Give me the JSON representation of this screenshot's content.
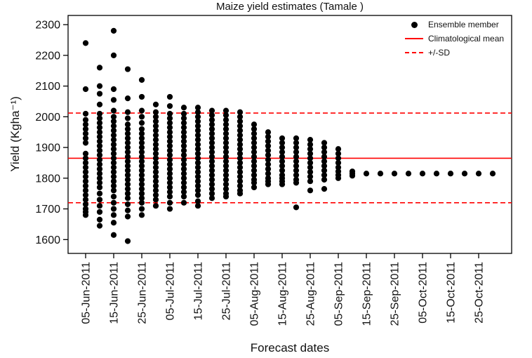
{
  "chart_data": {
    "type": "scatter",
    "title": "Maize yield estimates (Tamale )",
    "xlabel": "Forecast dates",
    "ylabel": "Yield (Kgha⁻¹)",
    "ylim": [
      1555,
      2330
    ],
    "yticks": [
      1600,
      1700,
      1800,
      1900,
      2000,
      2100,
      2200,
      2300
    ],
    "climatological_mean": 1865,
    "sd_upper": 2012,
    "sd_lower": 1720,
    "mean_color": "#ff0000",
    "dot_color": "#000000",
    "legend": [
      {
        "label": "Ensemble member",
        "marker": "dot",
        "color": "#000000"
      },
      {
        "label": "Climatological mean",
        "marker": "line",
        "color": "#ff0000"
      },
      {
        "label": "+/-SD",
        "marker": "dashed-line",
        "color": "#ff0000"
      }
    ],
    "columns": [
      {
        "date": "05-Jun-2011",
        "labeled": true,
        "values": [
          2240,
          2090,
          2010,
          1990,
          1975,
          1960,
          1945,
          1930,
          1915,
          1880,
          1865,
          1850,
          1835,
          1820,
          1805,
          1790,
          1775,
          1760,
          1745,
          1730,
          1715,
          1700,
          1690,
          1680
        ]
      },
      {
        "date": "10-Jun-2011",
        "labeled": false,
        "values": [
          2160,
          2100,
          2075,
          2040,
          2010,
          1995,
          1980,
          1965,
          1950,
          1935,
          1920,
          1905,
          1890,
          1875,
          1860,
          1845,
          1830,
          1815,
          1800,
          1785,
          1770,
          1750,
          1730,
          1710,
          1690,
          1665,
          1645
        ]
      },
      {
        "date": "15-Jun-2011",
        "labeled": true,
        "values": [
          2280,
          2200,
          2090,
          2055,
          2020,
          2000,
          1985,
          1970,
          1955,
          1940,
          1925,
          1910,
          1895,
          1880,
          1865,
          1850,
          1835,
          1820,
          1805,
          1790,
          1775,
          1760,
          1740,
          1720,
          1700,
          1680,
          1655,
          1615
        ]
      },
      {
        "date": "20-Jun-2011",
        "labeled": false,
        "values": [
          2155,
          2060,
          2015,
          1995,
          1975,
          1960,
          1945,
          1930,
          1915,
          1900,
          1885,
          1870,
          1855,
          1840,
          1825,
          1810,
          1795,
          1780,
          1765,
          1750,
          1735,
          1715,
          1695,
          1675,
          1595
        ]
      },
      {
        "date": "25-Jun-2011",
        "labeled": true,
        "values": [
          2120,
          2065,
          2020,
          2000,
          1980,
          1960,
          1945,
          1930,
          1915,
          1900,
          1885,
          1870,
          1855,
          1840,
          1825,
          1810,
          1795,
          1780,
          1765,
          1750,
          1735,
          1720,
          1700,
          1680
        ]
      },
      {
        "date": "30-Jun-2011",
        "labeled": false,
        "values": [
          2040,
          2015,
          2000,
          1985,
          1970,
          1955,
          1940,
          1925,
          1910,
          1895,
          1880,
          1865,
          1850,
          1835,
          1820,
          1805,
          1790,
          1775,
          1760,
          1745,
          1730,
          1710
        ]
      },
      {
        "date": "05-Jul-2011",
        "labeled": true,
        "values": [
          2065,
          2035,
          2010,
          1995,
          1980,
          1965,
          1950,
          1935,
          1920,
          1905,
          1890,
          1875,
          1860,
          1845,
          1830,
          1815,
          1800,
          1785,
          1770,
          1755,
          1740,
          1720,
          1700
        ]
      },
      {
        "date": "10-Jul-2011",
        "labeled": false,
        "values": [
          2030,
          2010,
          1995,
          1980,
          1965,
          1950,
          1935,
          1920,
          1905,
          1890,
          1875,
          1860,
          1845,
          1830,
          1815,
          1800,
          1785,
          1770,
          1755,
          1740,
          1720
        ]
      },
      {
        "date": "15-Jul-2011",
        "labeled": true,
        "values": [
          2030,
          2015,
          2000,
          1985,
          1970,
          1955,
          1940,
          1925,
          1910,
          1895,
          1880,
          1865,
          1850,
          1835,
          1820,
          1805,
          1790,
          1775,
          1760,
          1745,
          1725,
          1710
        ]
      },
      {
        "date": "20-Jul-2011",
        "labeled": false,
        "values": [
          2020,
          2005,
          1990,
          1975,
          1960,
          1945,
          1930,
          1915,
          1900,
          1885,
          1870,
          1855,
          1840,
          1825,
          1810,
          1795,
          1780,
          1765,
          1750,
          1735
        ]
      },
      {
        "date": "25-Jul-2011",
        "labeled": true,
        "values": [
          2020,
          2005,
          1990,
          1975,
          1960,
          1945,
          1930,
          1915,
          1900,
          1885,
          1870,
          1855,
          1840,
          1825,
          1810,
          1795,
          1780,
          1765,
          1750,
          1740
        ]
      },
      {
        "date": "30-Jul-2011",
        "labeled": false,
        "values": [
          2015,
          2000,
          1985,
          1970,
          1955,
          1940,
          1925,
          1910,
          1895,
          1880,
          1865,
          1850,
          1835,
          1820,
          1805,
          1790,
          1775,
          1760,
          1750
        ]
      },
      {
        "date": "05-Aug-2011",
        "labeled": true,
        "values": [
          1975,
          1960,
          1945,
          1930,
          1915,
          1900,
          1885,
          1870,
          1855,
          1840,
          1825,
          1810,
          1795,
          1785,
          1770
        ]
      },
      {
        "date": "10-Aug-2011",
        "labeled": false,
        "values": [
          1950,
          1935,
          1920,
          1905,
          1890,
          1875,
          1860,
          1845,
          1830,
          1815,
          1800,
          1790,
          1780
        ]
      },
      {
        "date": "15-Aug-2011",
        "labeled": true,
        "values": [
          1930,
          1915,
          1900,
          1885,
          1870,
          1855,
          1840,
          1825,
          1810,
          1800,
          1790,
          1780
        ]
      },
      {
        "date": "20-Aug-2011",
        "labeled": false,
        "values": [
          1930,
          1915,
          1900,
          1885,
          1870,
          1855,
          1840,
          1825,
          1810,
          1795,
          1785,
          1705
        ]
      },
      {
        "date": "25-Aug-2011",
        "labeled": true,
        "values": [
          1925,
          1910,
          1895,
          1880,
          1865,
          1850,
          1835,
          1820,
          1805,
          1790,
          1760
        ]
      },
      {
        "date": "30-Aug-2011",
        "labeled": false,
        "values": [
          1915,
          1900,
          1885,
          1870,
          1855,
          1840,
          1825,
          1810,
          1795,
          1765
        ]
      },
      {
        "date": "05-Sep-2011",
        "labeled": true,
        "values": [
          1895,
          1880,
          1865,
          1850,
          1835,
          1822,
          1810,
          1800
        ]
      },
      {
        "date": "10-Sep-2011",
        "labeled": false,
        "values": [
          1822,
          1815,
          1808
        ]
      },
      {
        "date": "15-Sep-2011",
        "labeled": true,
        "values": [
          1815
        ]
      },
      {
        "date": "20-Sep-2011",
        "labeled": false,
        "values": [
          1815
        ]
      },
      {
        "date": "25-Sep-2011",
        "labeled": true,
        "values": [
          1815
        ]
      },
      {
        "date": "30-Sep-2011",
        "labeled": false,
        "values": [
          1815
        ]
      },
      {
        "date": "05-Oct-2011",
        "labeled": true,
        "values": [
          1815
        ]
      },
      {
        "date": "10-Oct-2011",
        "labeled": false,
        "values": [
          1815
        ]
      },
      {
        "date": "15-Oct-2011",
        "labeled": true,
        "values": [
          1815
        ]
      },
      {
        "date": "20-Oct-2011",
        "labeled": false,
        "values": [
          1815
        ]
      },
      {
        "date": "25-Oct-2011",
        "labeled": true,
        "values": [
          1815
        ]
      },
      {
        "date": "30-Oct-2011",
        "labeled": false,
        "values": [
          1815
        ]
      }
    ]
  }
}
